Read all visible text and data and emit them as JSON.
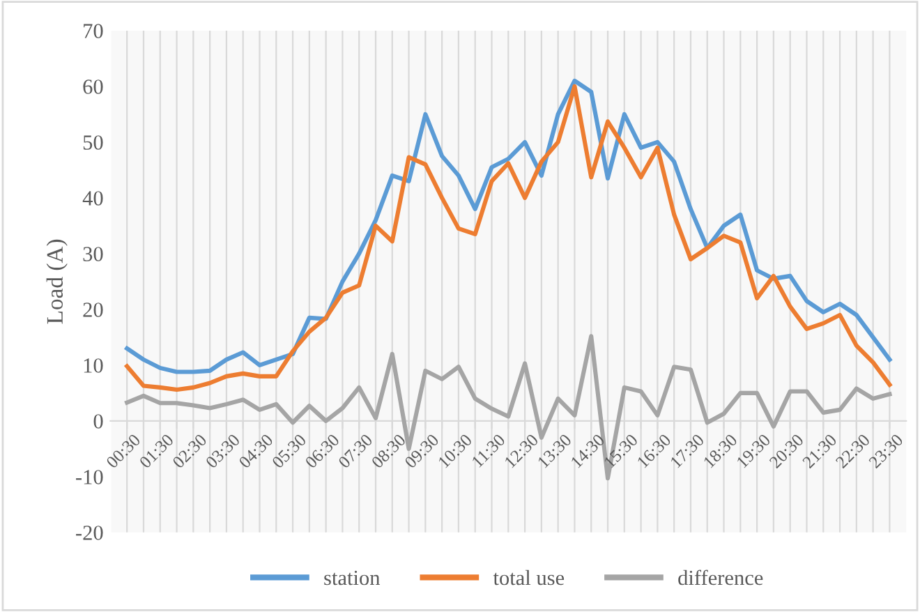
{
  "chart_data": {
    "type": "line",
    "ylabel": "Load (A)",
    "categories": [
      "00:30",
      null,
      "01:30",
      null,
      "02:30",
      null,
      "03:30",
      null,
      "04:30",
      null,
      "05:30",
      null,
      "06:30",
      null,
      "07:30",
      null,
      "08:30",
      null,
      "09:30",
      null,
      "10:30",
      null,
      "11:30",
      null,
      "12:30",
      null,
      "13:30",
      null,
      "14:30",
      null,
      "15:30",
      null,
      "16:30",
      null,
      "17:30",
      null,
      "18:30",
      null,
      "19:30",
      null,
      "20:30",
      null,
      "21:30",
      null,
      "22:30",
      null,
      "23:30"
    ],
    "series": [
      {
        "name": "station",
        "color": "#5b9bd5",
        "values": [
          13,
          11,
          9.5,
          8.8,
          8.8,
          9,
          11,
          12.3,
          10,
          11,
          12,
          18.5,
          18.3,
          25,
          30,
          36,
          44,
          43,
          55,
          47.5,
          44,
          38,
          45.5,
          47,
          50,
          44,
          55,
          61,
          59,
          43.5,
          55,
          49,
          50,
          46.5,
          38,
          31,
          35,
          37,
          27,
          25.5,
          26,
          21.5,
          19.5,
          21,
          19,
          15,
          11
        ]
      },
      {
        "name": "total use",
        "color": "#ed7d31",
        "values": [
          9.8,
          6.3,
          6,
          5.6,
          6,
          6.8,
          8,
          8.5,
          8,
          8,
          12.5,
          16,
          18.5,
          23,
          24.3,
          35,
          32.2,
          47.3,
          46,
          40,
          34.5,
          33.5,
          43,
          46.2,
          40,
          46.5,
          50,
          60,
          43.7,
          53.7,
          49,
          43.7,
          49,
          37,
          29,
          31,
          33.2,
          32,
          22,
          26,
          20.5,
          16.5,
          17.5,
          19,
          13.5,
          10.5,
          6.5
        ]
      },
      {
        "name": "difference",
        "color": "#a5a5a5",
        "values": [
          3.3,
          4.5,
          3.2,
          3.2,
          2.8,
          2.3,
          3,
          3.8,
          2,
          3,
          -0.3,
          2.7,
          0,
          2.3,
          6,
          0.5,
          12,
          -5,
          9,
          7.5,
          9.7,
          4,
          2.2,
          0.8,
          10.3,
          -3,
          4,
          1,
          15.2,
          -10.3,
          6,
          5.3,
          1,
          9.7,
          9.2,
          -0.3,
          1.3,
          5,
          5,
          -1,
          5.3,
          5.3,
          1.5,
          2,
          5.8,
          4,
          4.8
        ]
      }
    ],
    "ylim": [
      -20,
      70
    ],
    "yticks": [
      -20,
      -10,
      0,
      10,
      20,
      30,
      40,
      50,
      60,
      70
    ],
    "grid": "x",
    "legend": "bottom",
    "marker": "none",
    "line_style": "solid"
  }
}
